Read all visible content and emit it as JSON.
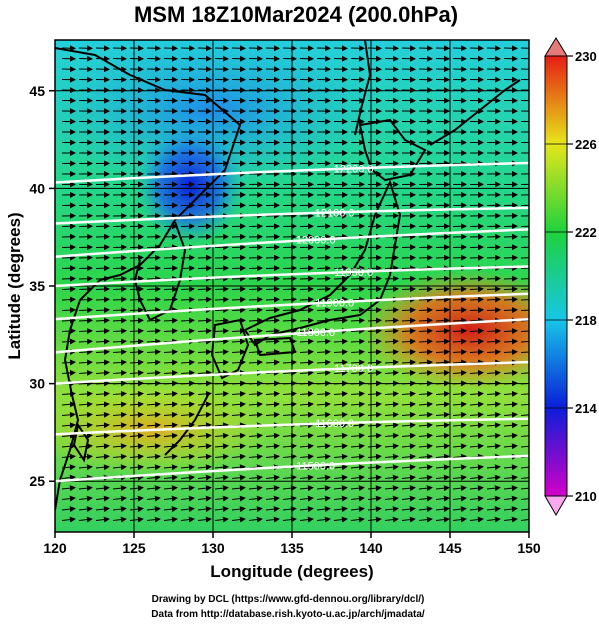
{
  "chart_data": {
    "type": "heatmap",
    "title": "MSM 18Z10Mar2024 (200.0hPa)",
    "xlabel": "Longitude (degrees)",
    "ylabel": "Latitude  (degrees)",
    "xlim": [
      120,
      150
    ],
    "ylim": [
      22.4,
      47.6
    ],
    "x_ticks": [
      120,
      125,
      130,
      135,
      140,
      145,
      150
    ],
    "y_ticks": [
      25,
      30,
      35,
      40,
      45
    ],
    "grid": true,
    "colorbar": {
      "range": [
        210,
        230
      ],
      "ticks": [
        210,
        214,
        218,
        222,
        226,
        230
      ],
      "extend": "both",
      "colors": [
        "#d400c8",
        "#0a1ed8",
        "#17c6e8",
        "#1ed23c",
        "#e6e61a",
        "#e61e14"
      ]
    },
    "contours": [
      {
        "label": "11500.0",
        "lat_west": 25.0,
        "lat_east": 26.3
      },
      {
        "label": "11600.0",
        "lat_west": 27.4,
        "lat_east": 28.2
      },
      {
        "label": "11700.0",
        "lat_west": 30.0,
        "lat_east": 31.1
      },
      {
        "label": "11800.0",
        "lat_west": 31.6,
        "lat_east": 33.3
      },
      {
        "label": "11900.0",
        "lat_west": 33.3,
        "lat_east": 34.6
      },
      {
        "label": "11950.0",
        "lat_west": 35.0,
        "lat_east": 36.0
      },
      {
        "label": "12000.0",
        "lat_west": 36.5,
        "lat_east": 37.9
      },
      {
        "label": "12100.0",
        "lat_west": 38.2,
        "lat_east": 39.0
      },
      {
        "label": "12200.0",
        "lat_west": 40.3,
        "lat_east": 41.3
      }
    ]
  },
  "credits": {
    "line1": "Drawing by DCL (https://www.gfd-dennou.org/library/dcl/)",
    "line2": "Data from http://database.rish.kyoto-u.ac.jp/arch/jmadata/"
  }
}
